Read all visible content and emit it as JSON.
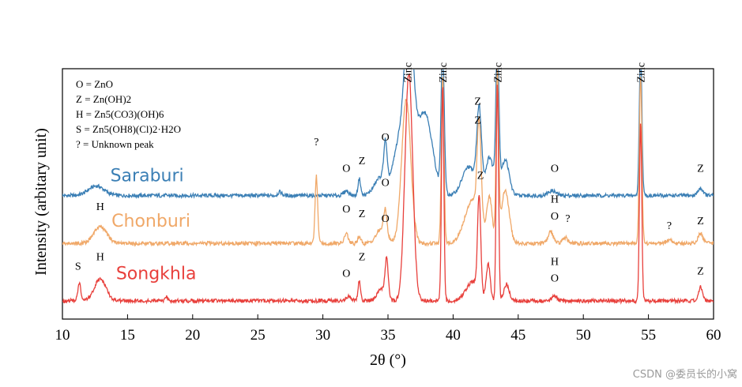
{
  "chart_data": {
    "type": "line",
    "xlabel": "2θ (°)",
    "ylabel": "Intensity (arbitary unit)",
    "xlim": [
      10,
      60
    ],
    "xticks": [
      10,
      15,
      20,
      25,
      30,
      35,
      40,
      45,
      50,
      55,
      60
    ],
    "ylim": [
      0,
      100
    ],
    "legend": {
      "placement": "top-left",
      "entries": [
        {
          "key": "O",
          "desc": "ZnO"
        },
        {
          "key": "Z",
          "desc": "Zn(OH)2"
        },
        {
          "key": "H",
          "desc": "Zn5(CO3)(OH)6"
        },
        {
          "key": "S",
          "desc": "Zn5(OH8)(Cl)2·H2O"
        },
        {
          "key": "?",
          "desc": "Unknown peak"
        }
      ]
    },
    "top_labels": [
      {
        "x": 36.5,
        "text": "Zinc"
      },
      {
        "x": 39.2,
        "text": "Zinc"
      },
      {
        "x": 43.4,
        "text": "Zinc"
      },
      {
        "x": 54.4,
        "text": "Zinc"
      }
    ],
    "series": [
      {
        "name": "Saraburi",
        "color": "#3b7fb5",
        "label_x": 16.5,
        "label_y": 53,
        "baseline": 47,
        "peaks": [
          {
            "x": 12.6,
            "h": 4,
            "w": 0.6
          },
          {
            "x": 26.7,
            "h": 1.5,
            "w": 0.15
          },
          {
            "x": 31.8,
            "h": 2,
            "w": 0.2
          },
          {
            "x": 32.8,
            "h": 7,
            "w": 0.1
          },
          {
            "x": 34.5,
            "h": 8,
            "w": 0.5
          },
          {
            "x": 34.8,
            "h": 16,
            "w": 0.12
          },
          {
            "x": 35.8,
            "h": 20,
            "w": 0.4
          },
          {
            "x": 36.6,
            "h": 70,
            "w": 0.35
          },
          {
            "x": 37.8,
            "h": 35,
            "w": 0.6
          },
          {
            "x": 39.2,
            "h": 60,
            "w": 0.12
          },
          {
            "x": 41.2,
            "h": 12,
            "w": 0.5
          },
          {
            "x": 42.0,
            "h": 34,
            "w": 0.18
          },
          {
            "x": 42.8,
            "h": 16,
            "w": 0.3
          },
          {
            "x": 43.4,
            "h": 60,
            "w": 0.12
          },
          {
            "x": 44.0,
            "h": 15,
            "w": 0.3
          },
          {
            "x": 47.6,
            "h": 2,
            "w": 0.3
          },
          {
            "x": 54.4,
            "h": 60,
            "w": 0.1
          },
          {
            "x": 59.0,
            "h": 3,
            "w": 0.2
          }
        ],
        "annotations": [
          {
            "x": 31.8,
            "y": 57,
            "text": "O"
          },
          {
            "x": 33.0,
            "y": 60,
            "text": "Z"
          },
          {
            "x": 34.8,
            "y": 70,
            "text": "O"
          },
          {
            "x": 41.9,
            "y": 85,
            "text": "Z"
          },
          {
            "x": 47.8,
            "y": 57,
            "text": "O"
          },
          {
            "x": 59.0,
            "y": 57,
            "text": "Z"
          }
        ]
      },
      {
        "name": "Chonburi",
        "color": "#f0a868",
        "label_x": 16.8,
        "label_y": 34,
        "baseline": 27,
        "peaks": [
          {
            "x": 12.9,
            "h": 7,
            "w": 0.5
          },
          {
            "x": 29.5,
            "h": 28,
            "w": 0.1
          },
          {
            "x": 31.8,
            "h": 4,
            "w": 0.15
          },
          {
            "x": 32.8,
            "h": 3,
            "w": 0.12
          },
          {
            "x": 34.5,
            "h": 6,
            "w": 0.4
          },
          {
            "x": 34.8,
            "h": 10,
            "w": 0.12
          },
          {
            "x": 36.4,
            "h": 60,
            "w": 0.35
          },
          {
            "x": 39.2,
            "h": 70,
            "w": 0.1
          },
          {
            "x": 41.5,
            "h": 18,
            "w": 0.6
          },
          {
            "x": 42.0,
            "h": 40,
            "w": 0.15
          },
          {
            "x": 42.8,
            "h": 18,
            "w": 0.2
          },
          {
            "x": 43.4,
            "h": 70,
            "w": 0.1
          },
          {
            "x": 44.0,
            "h": 22,
            "w": 0.3
          },
          {
            "x": 47.5,
            "h": 5,
            "w": 0.2
          },
          {
            "x": 48.6,
            "h": 2.5,
            "w": 0.2
          },
          {
            "x": 54.4,
            "h": 70,
            "w": 0.1
          },
          {
            "x": 56.6,
            "h": 1.5,
            "w": 0.2
          },
          {
            "x": 59.0,
            "h": 4,
            "w": 0.2
          }
        ],
        "annotations": [
          {
            "x": 12.9,
            "y": 41,
            "text": "H"
          },
          {
            "x": 29.5,
            "y": 68,
            "text": "?"
          },
          {
            "x": 31.8,
            "y": 40,
            "text": "O"
          },
          {
            "x": 33.0,
            "y": 38,
            "text": "Z"
          },
          {
            "x": 34.8,
            "y": 51,
            "text": "O"
          },
          {
            "x": 41.9,
            "y": 77,
            "text": "Z"
          },
          {
            "x": 47.8,
            "y": 44,
            "text": "H"
          },
          {
            "x": 47.8,
            "y": 37,
            "text": "O"
          },
          {
            "x": 48.8,
            "y": 36,
            "text": "?"
          },
          {
            "x": 56.6,
            "y": 33,
            "text": "?"
          },
          {
            "x": 59.0,
            "y": 35,
            "text": "Z"
          }
        ]
      },
      {
        "name": "Songkhla",
        "color": "#e8403c",
        "label_x": 17.2,
        "label_y": 12,
        "baseline": 3,
        "peaks": [
          {
            "x": 11.3,
            "h": 7,
            "w": 0.12
          },
          {
            "x": 12.9,
            "h": 9,
            "w": 0.45
          },
          {
            "x": 18.0,
            "h": 1.5,
            "w": 0.1
          },
          {
            "x": 32.0,
            "h": 2,
            "w": 0.2
          },
          {
            "x": 32.8,
            "h": 8,
            "w": 0.1
          },
          {
            "x": 34.5,
            "h": 5,
            "w": 0.3
          },
          {
            "x": 34.9,
            "h": 16,
            "w": 0.12
          },
          {
            "x": 36.6,
            "h": 95,
            "w": 0.3
          },
          {
            "x": 39.2,
            "h": 90,
            "w": 0.09
          },
          {
            "x": 41.5,
            "h": 8,
            "w": 0.5
          },
          {
            "x": 42.0,
            "h": 40,
            "w": 0.12
          },
          {
            "x": 42.7,
            "h": 15,
            "w": 0.15
          },
          {
            "x": 43.4,
            "h": 90,
            "w": 0.09
          },
          {
            "x": 44.1,
            "h": 7,
            "w": 0.2
          },
          {
            "x": 47.8,
            "h": 2,
            "w": 0.2
          },
          {
            "x": 54.4,
            "h": 74,
            "w": 0.09
          },
          {
            "x": 59.0,
            "h": 6,
            "w": 0.15
          }
        ],
        "annotations": [
          {
            "x": 11.2,
            "y": 16,
            "text": "S"
          },
          {
            "x": 12.9,
            "y": 20,
            "text": "H"
          },
          {
            "x": 31.8,
            "y": 13,
            "text": "O"
          },
          {
            "x": 33.0,
            "y": 20,
            "text": "Z"
          },
          {
            "x": 34.8,
            "y": 36,
            "text": "O"
          },
          {
            "x": 42.1,
            "y": 54,
            "text": "Z"
          },
          {
            "x": 47.8,
            "y": 18,
            "text": "H"
          },
          {
            "x": 47.8,
            "y": 11,
            "text": "O"
          },
          {
            "x": 59.0,
            "y": 14,
            "text": "Z"
          }
        ]
      }
    ]
  },
  "watermark": "CSDN @委员长的小窝"
}
